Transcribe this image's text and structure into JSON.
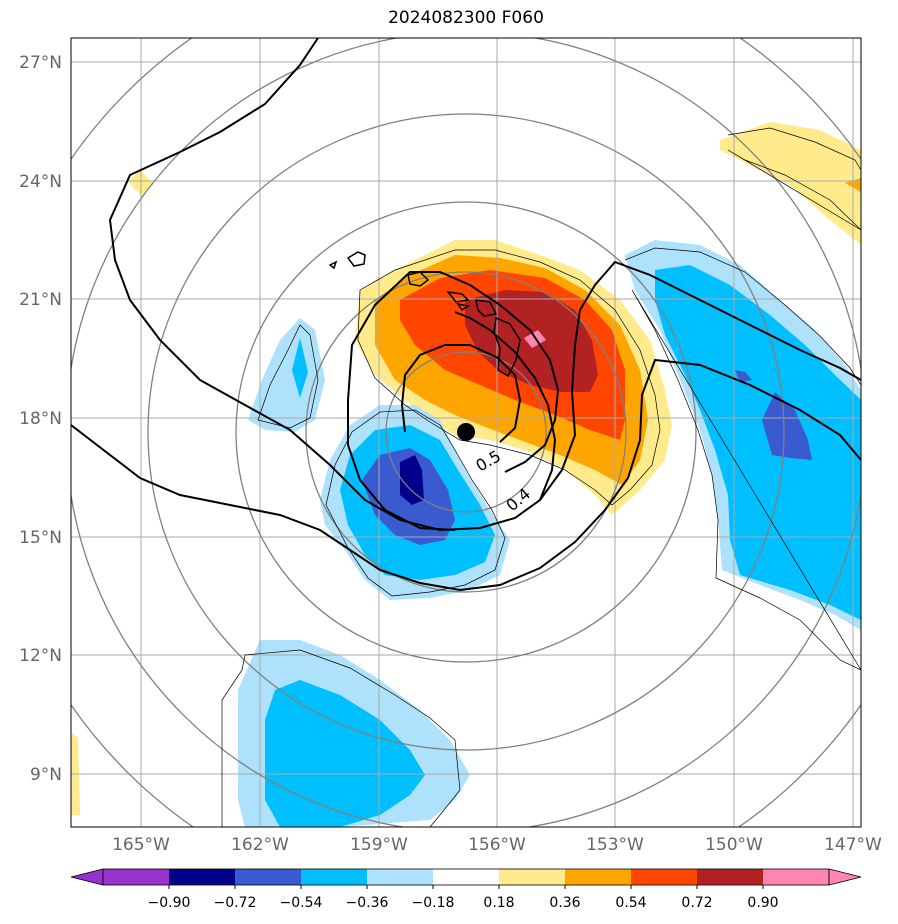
{
  "title": "2024082300 F060",
  "lat_labels": [
    "27°N",
    "24°N",
    "21°N",
    "18°N",
    "15°N",
    "12°N",
    "9°N"
  ],
  "lon_labels": [
    "165°W",
    "162°W",
    "159°W",
    "156°W",
    "153°W",
    "150°W",
    "147°W"
  ],
  "contour_labels": [
    "0.5",
    "0.4"
  ],
  "colorbar": {
    "labels": [
      "−0.90",
      "−0.72",
      "−0.54",
      "−0.36",
      "−0.18",
      "0.18",
      "0.36",
      "0.54",
      "0.72",
      "0.90"
    ],
    "colors": [
      "#9932cc",
      "#00008b",
      "#3a5bcf",
      "#00bfff",
      "#aee1fb",
      "#ffffff",
      "#ffeb8c",
      "#ffa500",
      "#ff4500",
      "#b22222",
      "#ff86b3",
      "#ff86b3"
    ]
  },
  "colors": {
    "grid": "#aaaaaa",
    "range_rings": "#808080",
    "contours": "#000000",
    "center_marker": "#000000"
  }
}
